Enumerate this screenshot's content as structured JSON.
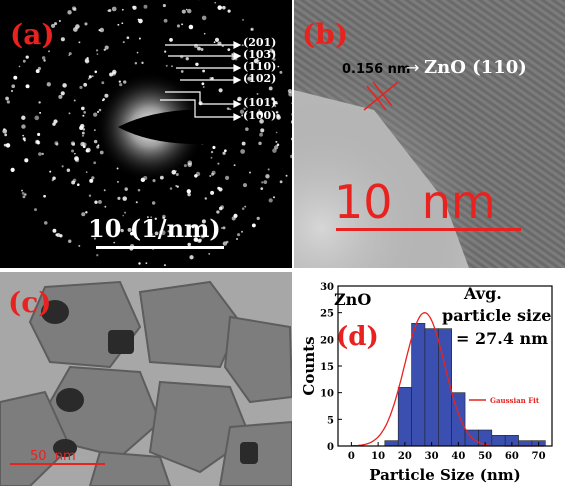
{
  "panels": {
    "a": {
      "label": "(a)",
      "ring_indices": [
        "(201)",
        "(103)",
        "(110)",
        "(102)",
        "(101)",
        "(100)"
      ],
      "scale_bar": "10 (1/nm)"
    },
    "b": {
      "label": "(b)",
      "d_spacing": "0.156 nm",
      "plane": "ZnO (110)",
      "scale_bar": "10  nm"
    },
    "c": {
      "label": "(c)",
      "scale_bar": "50  nm"
    },
    "d": {
      "label": "(d)",
      "material": "ZnO",
      "annotation_line1": "Avg.",
      "annotation_line2": "particle size",
      "annotation_line3": "= 27.4 nm"
    }
  },
  "colors": {
    "accent_red": "#e8231f",
    "bar_blue": "#3a4fb0",
    "fit_red": "#e8231f"
  },
  "chart_data": {
    "type": "bar",
    "title": "",
    "xlabel": "Particle Size (nm)",
    "ylabel": "Counts",
    "xlim": [
      -5,
      75
    ],
    "ylim": [
      0,
      30
    ],
    "xticks": [
      0,
      10,
      20,
      30,
      40,
      50,
      60,
      70
    ],
    "yticks": [
      0,
      5,
      10,
      15,
      20,
      25,
      30
    ],
    "bin_width": 5,
    "bin_centers": [
      5,
      10,
      15,
      20,
      25,
      30,
      35,
      40,
      45,
      50,
      55,
      60,
      65,
      70
    ],
    "values": [
      0,
      0,
      1,
      11,
      23,
      22,
      22,
      10,
      3,
      3,
      2,
      2,
      1,
      1
    ],
    "series": [
      {
        "name": "Gaussian Fit",
        "type": "line",
        "center": 27.4,
        "amplitude": 25,
        "sigma": 7.5
      }
    ],
    "legend_position": "right"
  }
}
